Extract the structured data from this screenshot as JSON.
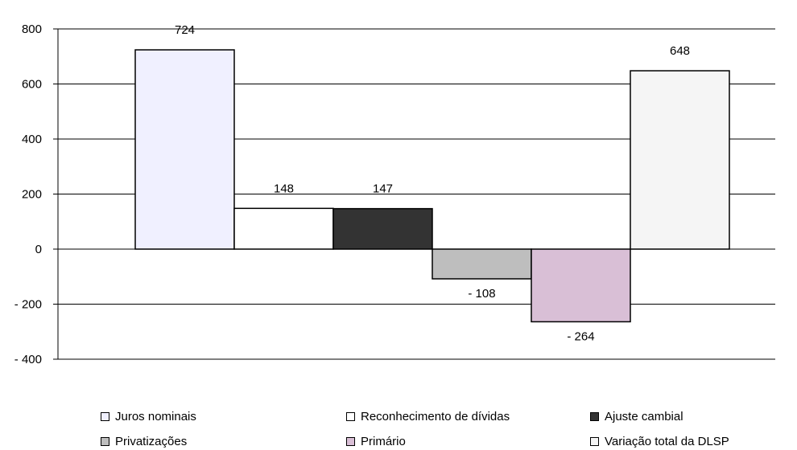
{
  "chart_data": {
    "type": "bar",
    "title": "",
    "xlabel": "",
    "ylabel": "",
    "ylim": [
      -400,
      800
    ],
    "yticks": [
      800,
      600,
      400,
      200,
      0,
      -200,
      -400
    ],
    "ytick_labels": [
      "800",
      "600",
      "400",
      "200",
      "0",
      "- 200",
      "- 400"
    ],
    "grid": true,
    "legend_position": "bottom",
    "categories": [
      "Juros nominais",
      "Reconhecimento de dívidas",
      "Ajuste cambial",
      "Privatizações",
      "Primário",
      "Variação total da DLSP"
    ],
    "values": [
      724,
      148,
      147,
      -108,
      -264,
      648
    ],
    "value_labels": [
      "724",
      "148",
      "147",
      "- 108",
      "- 264",
      "648"
    ],
    "colors": [
      "#f0f0ff",
      "#ffffff",
      "#333333",
      "#bebebe",
      "#d9bfd6",
      "#f5f5f5"
    ],
    "waterfall_bases": [
      0,
      0,
      0,
      0,
      0,
      0
    ]
  }
}
